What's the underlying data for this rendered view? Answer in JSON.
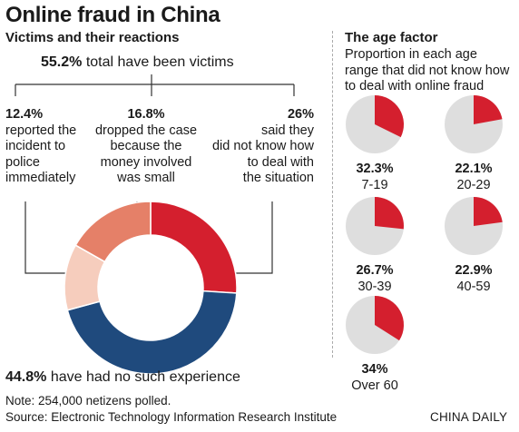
{
  "title": "Online fraud in China",
  "subtitle": "Victims and their reactions",
  "total": {
    "value": "55.2%",
    "text": "total have been victims"
  },
  "reactions": [
    {
      "value": "12.4%",
      "lines": [
        "reported the",
        "incident to",
        "police",
        "immediately"
      ]
    },
    {
      "value": "16.8%",
      "lines": [
        "dropped the case",
        "because the",
        "money involved",
        "was small"
      ]
    },
    {
      "value": "26%",
      "lines": [
        "said they",
        "did not know how",
        "to deal with",
        "the situation"
      ]
    }
  ],
  "no_experience": {
    "value": "44.8%",
    "text": "have had no such experience"
  },
  "age_section": {
    "title": "The age factor",
    "subtitle_lines": [
      "Proportion in each age",
      "range that did not know how",
      "to deal with online fraud"
    ]
  },
  "note": "Note: 254,000 netizens polled.",
  "source": "Source: Electronic Technology Information Research Institute",
  "brand": "CHINA DAILY",
  "colors": {
    "red": "#d41f2e",
    "navy": "#1f4a7d",
    "salmon": "#e58068",
    "peach": "#f6cdbd",
    "grey": "#dedede"
  },
  "chart_data": [
    {
      "type": "pie",
      "variant": "donut",
      "title": "Victims and their reactions",
      "slices": [
        {
          "label": "said they did not know how to deal with the situation",
          "value": 26,
          "color": "#d41f2e"
        },
        {
          "label": "have had no such experience",
          "value": 44.8,
          "color": "#1f4a7d"
        },
        {
          "label": "reported the incident to police immediately",
          "value": 12.4,
          "color": "#f6cdbd"
        },
        {
          "label": "dropped the case because the money involved was small",
          "value": 16.8,
          "color": "#e58068"
        }
      ]
    },
    {
      "type": "pie",
      "title": "The age factor",
      "categories": [
        "7-19",
        "20-29",
        "30-39",
        "40-59",
        "Over 60"
      ],
      "values": [
        32.3,
        22.1,
        26.7,
        22.9,
        34
      ],
      "labels": [
        "32.3%",
        "22.1%",
        "26.7%",
        "22.9%",
        "34%"
      ],
      "highlight_color": "#d41f2e",
      "rest_color": "#dedede"
    }
  ]
}
